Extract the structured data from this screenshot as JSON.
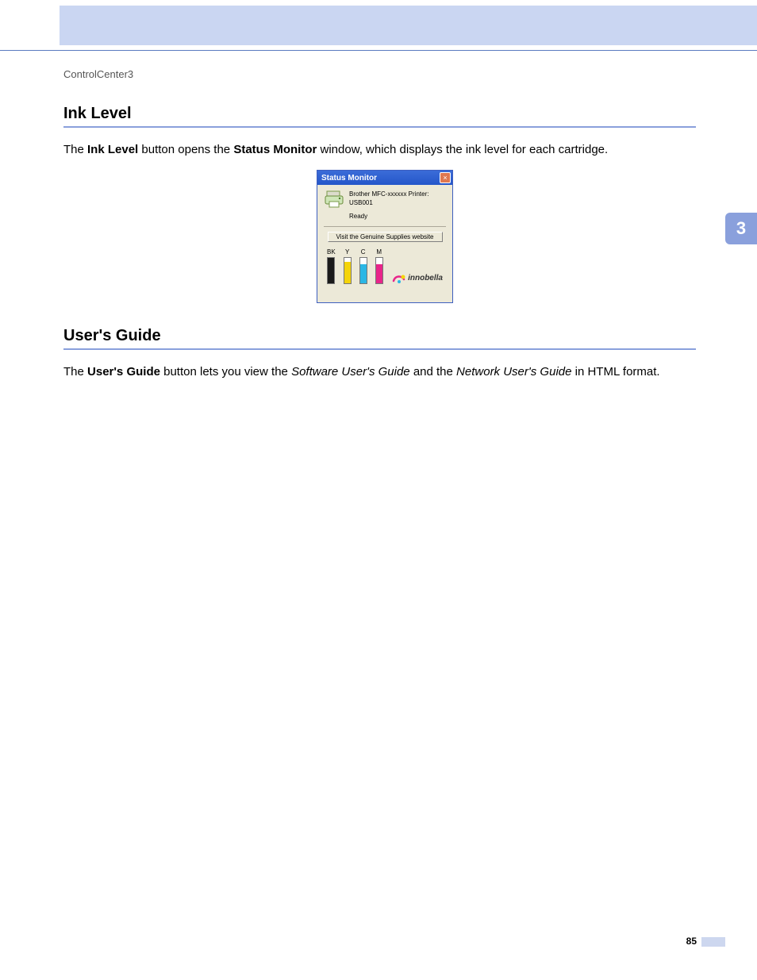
{
  "breadcrumb": "ControlCenter3",
  "sideTab": "3",
  "pageNumber": "85",
  "sections": {
    "ink": {
      "heading": "Ink Level",
      "para": {
        "pre": "The ",
        "b1": "Ink Level",
        "mid1": " button opens the ",
        "b2": "Status Monitor",
        "post": " window, which displays the ink level for each cartridge."
      }
    },
    "guide": {
      "heading": "User's Guide",
      "para": {
        "pre": "The ",
        "b1": "User's Guide",
        "mid1": " button lets you view the ",
        "i1": "Software User's Guide",
        "mid2": " and the ",
        "i2": "Network User's Guide",
        "post": " in HTML format."
      }
    }
  },
  "statusMonitor": {
    "title": "Status Monitor",
    "closeGlyph": "×",
    "printerName": "Brother MFC-xxxxxx Printer: USB001",
    "status": "Ready",
    "linkButton": "Visit the Genuine Supplies website",
    "brand": "innobella",
    "ink": [
      {
        "label": "BK",
        "level": 0.95,
        "color": "#1a1a1a"
      },
      {
        "label": "Y",
        "level": 0.8,
        "color": "#f4d40a"
      },
      {
        "label": "C",
        "level": 0.7,
        "color": "#2bb7e5"
      },
      {
        "label": "M",
        "level": 0.7,
        "color": "#e8258a"
      }
    ],
    "barHeightPx": 34
  },
  "colors": {
    "headerBand": "#cad6f2",
    "ruleLine": "#5a7ac0",
    "sideTab": "#8aa0dc"
  }
}
